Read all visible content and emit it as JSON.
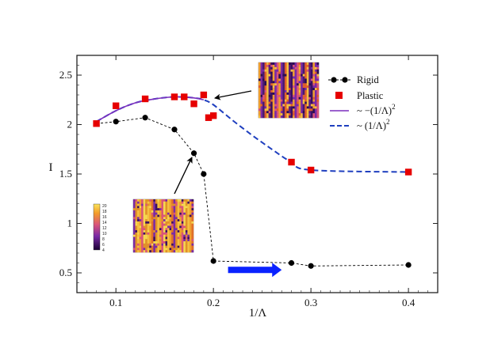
{
  "chart_data": {
    "type": "line",
    "title": "",
    "xlabel": "1/Λ",
    "ylabel": "I",
    "xlim": [
      0.06,
      0.43
    ],
    "ylim": [
      0.3,
      2.7
    ],
    "x_ticks": [
      0.1,
      0.2,
      0.3,
      0.4
    ],
    "x_tick_labels": [
      "0.1",
      "0.2",
      "0.3",
      "0.4"
    ],
    "y_ticks": [
      0.5,
      1,
      1.5,
      2,
      2.5
    ],
    "y_tick_labels": [
      "0.5",
      "1",
      "1.5",
      "2",
      "2.5"
    ],
    "grid": false,
    "legend_position": "top-right",
    "series": [
      {
        "name": "Rigid",
        "marker": "circle",
        "color": "#000000",
        "line": "dashed-black",
        "points": [
          {
            "x": 0.08,
            "y": 2.01
          },
          {
            "x": 0.1,
            "y": 2.03
          },
          {
            "x": 0.13,
            "y": 2.07
          },
          {
            "x": 0.16,
            "y": 1.95
          },
          {
            "x": 0.18,
            "y": 1.71
          },
          {
            "x": 0.19,
            "y": 1.5
          },
          {
            "x": 0.2,
            "y": 0.62
          },
          {
            "x": 0.28,
            "y": 0.6
          },
          {
            "x": 0.3,
            "y": 0.57
          },
          {
            "x": 0.4,
            "y": 0.58
          }
        ]
      },
      {
        "name": "Plastic",
        "marker": "square",
        "color": "#e60000",
        "points": [
          {
            "x": 0.08,
            "y": 2.01
          },
          {
            "x": 0.1,
            "y": 2.19
          },
          {
            "x": 0.13,
            "y": 2.26
          },
          {
            "x": 0.16,
            "y": 2.28
          },
          {
            "x": 0.17,
            "y": 2.28
          },
          {
            "x": 0.18,
            "y": 2.21
          },
          {
            "x": 0.19,
            "y": 2.3
          },
          {
            "x": 0.195,
            "y": 2.07
          },
          {
            "x": 0.2,
            "y": 2.09
          },
          {
            "x": 0.28,
            "y": 1.62
          },
          {
            "x": 0.3,
            "y": 1.54
          },
          {
            "x": 0.4,
            "y": 1.52
          }
        ]
      },
      {
        "name": "~ −(1/Λ)²",
        "type": "fit",
        "color": "#7b2fbe",
        "line": "solid",
        "points": [
          {
            "x": 0.08,
            "y": 2.03
          },
          {
            "x": 0.1,
            "y": 2.14
          },
          {
            "x": 0.12,
            "y": 2.22
          },
          {
            "x": 0.14,
            "y": 2.26
          },
          {
            "x": 0.16,
            "y": 2.28
          },
          {
            "x": 0.18,
            "y": 2.27
          },
          {
            "x": 0.19,
            "y": 2.25
          }
        ]
      },
      {
        "name": "~ (1/Λ)²",
        "type": "fit",
        "color": "#1f3fbf",
        "line": "dashed",
        "points": [
          {
            "x": 0.08,
            "y": 2.03
          },
          {
            "x": 0.1,
            "y": 2.14
          },
          {
            "x": 0.12,
            "y": 2.22
          },
          {
            "x": 0.14,
            "y": 2.26
          },
          {
            "x": 0.16,
            "y": 2.28
          },
          {
            "x": 0.18,
            "y": 2.27
          },
          {
            "x": 0.19,
            "y": 2.25
          },
          {
            "x": 0.2,
            "y": 2.2
          },
          {
            "x": 0.22,
            "y": 2.04
          },
          {
            "x": 0.24,
            "y": 1.89
          },
          {
            "x": 0.26,
            "y": 1.75
          },
          {
            "x": 0.28,
            "y": 1.62
          },
          {
            "x": 0.3,
            "y": 1.54
          },
          {
            "x": 0.4,
            "y": 1.52
          }
        ]
      }
    ],
    "legend": [
      {
        "label": "Rigid",
        "style": "rigid"
      },
      {
        "label": "Plastic",
        "style": "plastic"
      },
      {
        "label": "~ −(1/Λ)",
        "sup": "2",
        "style": "fit-solid"
      },
      {
        "label": "~ (1/Λ)",
        "sup": "2",
        "style": "fit-dashed"
      }
    ],
    "insets": [
      {
        "name": "plastic-snapshot",
        "points_to": {
          "x": 0.19,
          "y": 2.26
        },
        "palette": "purple-orange"
      },
      {
        "name": "rigid-snapshot",
        "points_to": {
          "x": 0.18,
          "y": 1.71
        },
        "palette": "orange-stripes",
        "colorbar_labels": [
          "20",
          "18",
          "16",
          "14",
          "12",
          "10",
          "8",
          "6",
          "4"
        ]
      }
    ],
    "annotations": [
      {
        "type": "arrow",
        "color": "#0a22ff",
        "direction": "right",
        "from": {
          "x": 0.215,
          "y": 0.53
        },
        "to": {
          "x": 0.27,
          "y": 0.53
        }
      }
    ]
  }
}
